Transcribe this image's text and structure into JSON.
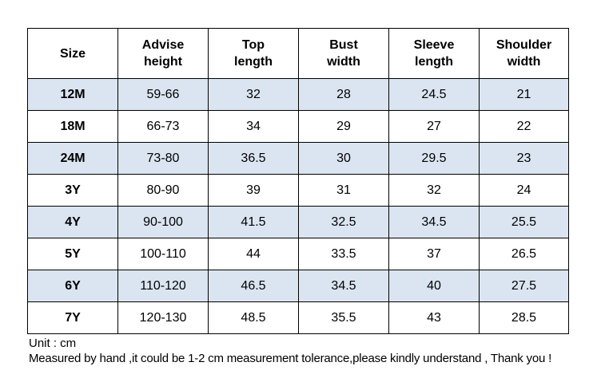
{
  "header": [
    [
      "Size"
    ],
    [
      "Advise",
      "height"
    ],
    [
      "Top",
      "length"
    ],
    [
      "Bust",
      "width"
    ],
    [
      "Sleeve",
      "length"
    ],
    [
      "Shoulder",
      "width"
    ]
  ],
  "rows": [
    [
      "12M",
      "59-66",
      "32",
      "28",
      "24.5",
      "21"
    ],
    [
      "18M",
      "66-73",
      "34",
      "29",
      "27",
      "22"
    ],
    [
      "24M",
      "73-80",
      "36.5",
      "30",
      "29.5",
      "23"
    ],
    [
      "3Y",
      "80-90",
      "39",
      "31",
      "32",
      "24"
    ],
    [
      "4Y",
      "90-100",
      "41.5",
      "32.5",
      "34.5",
      "25.5"
    ],
    [
      "5Y",
      "100-110",
      "44",
      "33.5",
      "37",
      "26.5"
    ],
    [
      "6Y",
      "110-120",
      "46.5",
      "34.5",
      "40",
      "27.5"
    ],
    [
      "7Y",
      "120-130",
      "48.5",
      "35.5",
      "43",
      "28.5"
    ]
  ],
  "notes": {
    "unit": "Unit : cm",
    "measure": "Measured by hand ,it could be 1-2 cm measurement tolerance,please kindly understand , Thank you !"
  },
  "colors": {
    "shaded_row": "#dbe5f1",
    "border": "#000000"
  }
}
